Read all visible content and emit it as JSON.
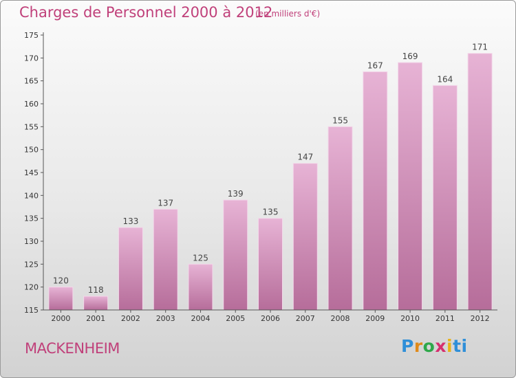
{
  "title": "Charges de Personnel 2000 à 2012",
  "subtitle": "(en milliers d'€)",
  "town": "MACKENHEIM",
  "logo": {
    "letters": [
      "P",
      "r",
      "o",
      "x",
      "i",
      "t",
      "i"
    ]
  },
  "colors": {
    "bar_top": "#e7b3d5",
    "bar_bottom": "#b66d9a",
    "text_accent": "#c0407a",
    "axis": "#555555"
  },
  "chart_data": {
    "type": "bar",
    "categories": [
      "2000",
      "2001",
      "2002",
      "2003",
      "2004",
      "2005",
      "2006",
      "2007",
      "2008",
      "2009",
      "2010",
      "2011",
      "2012"
    ],
    "values": [
      120,
      118,
      133,
      137,
      125,
      139,
      135,
      147,
      155,
      167,
      169,
      164,
      171
    ],
    "ylim": [
      115,
      175
    ],
    "yticks": [
      115,
      120,
      125,
      130,
      135,
      140,
      145,
      150,
      155,
      160,
      165,
      170,
      175
    ],
    "data_labels": true,
    "grid": false
  }
}
